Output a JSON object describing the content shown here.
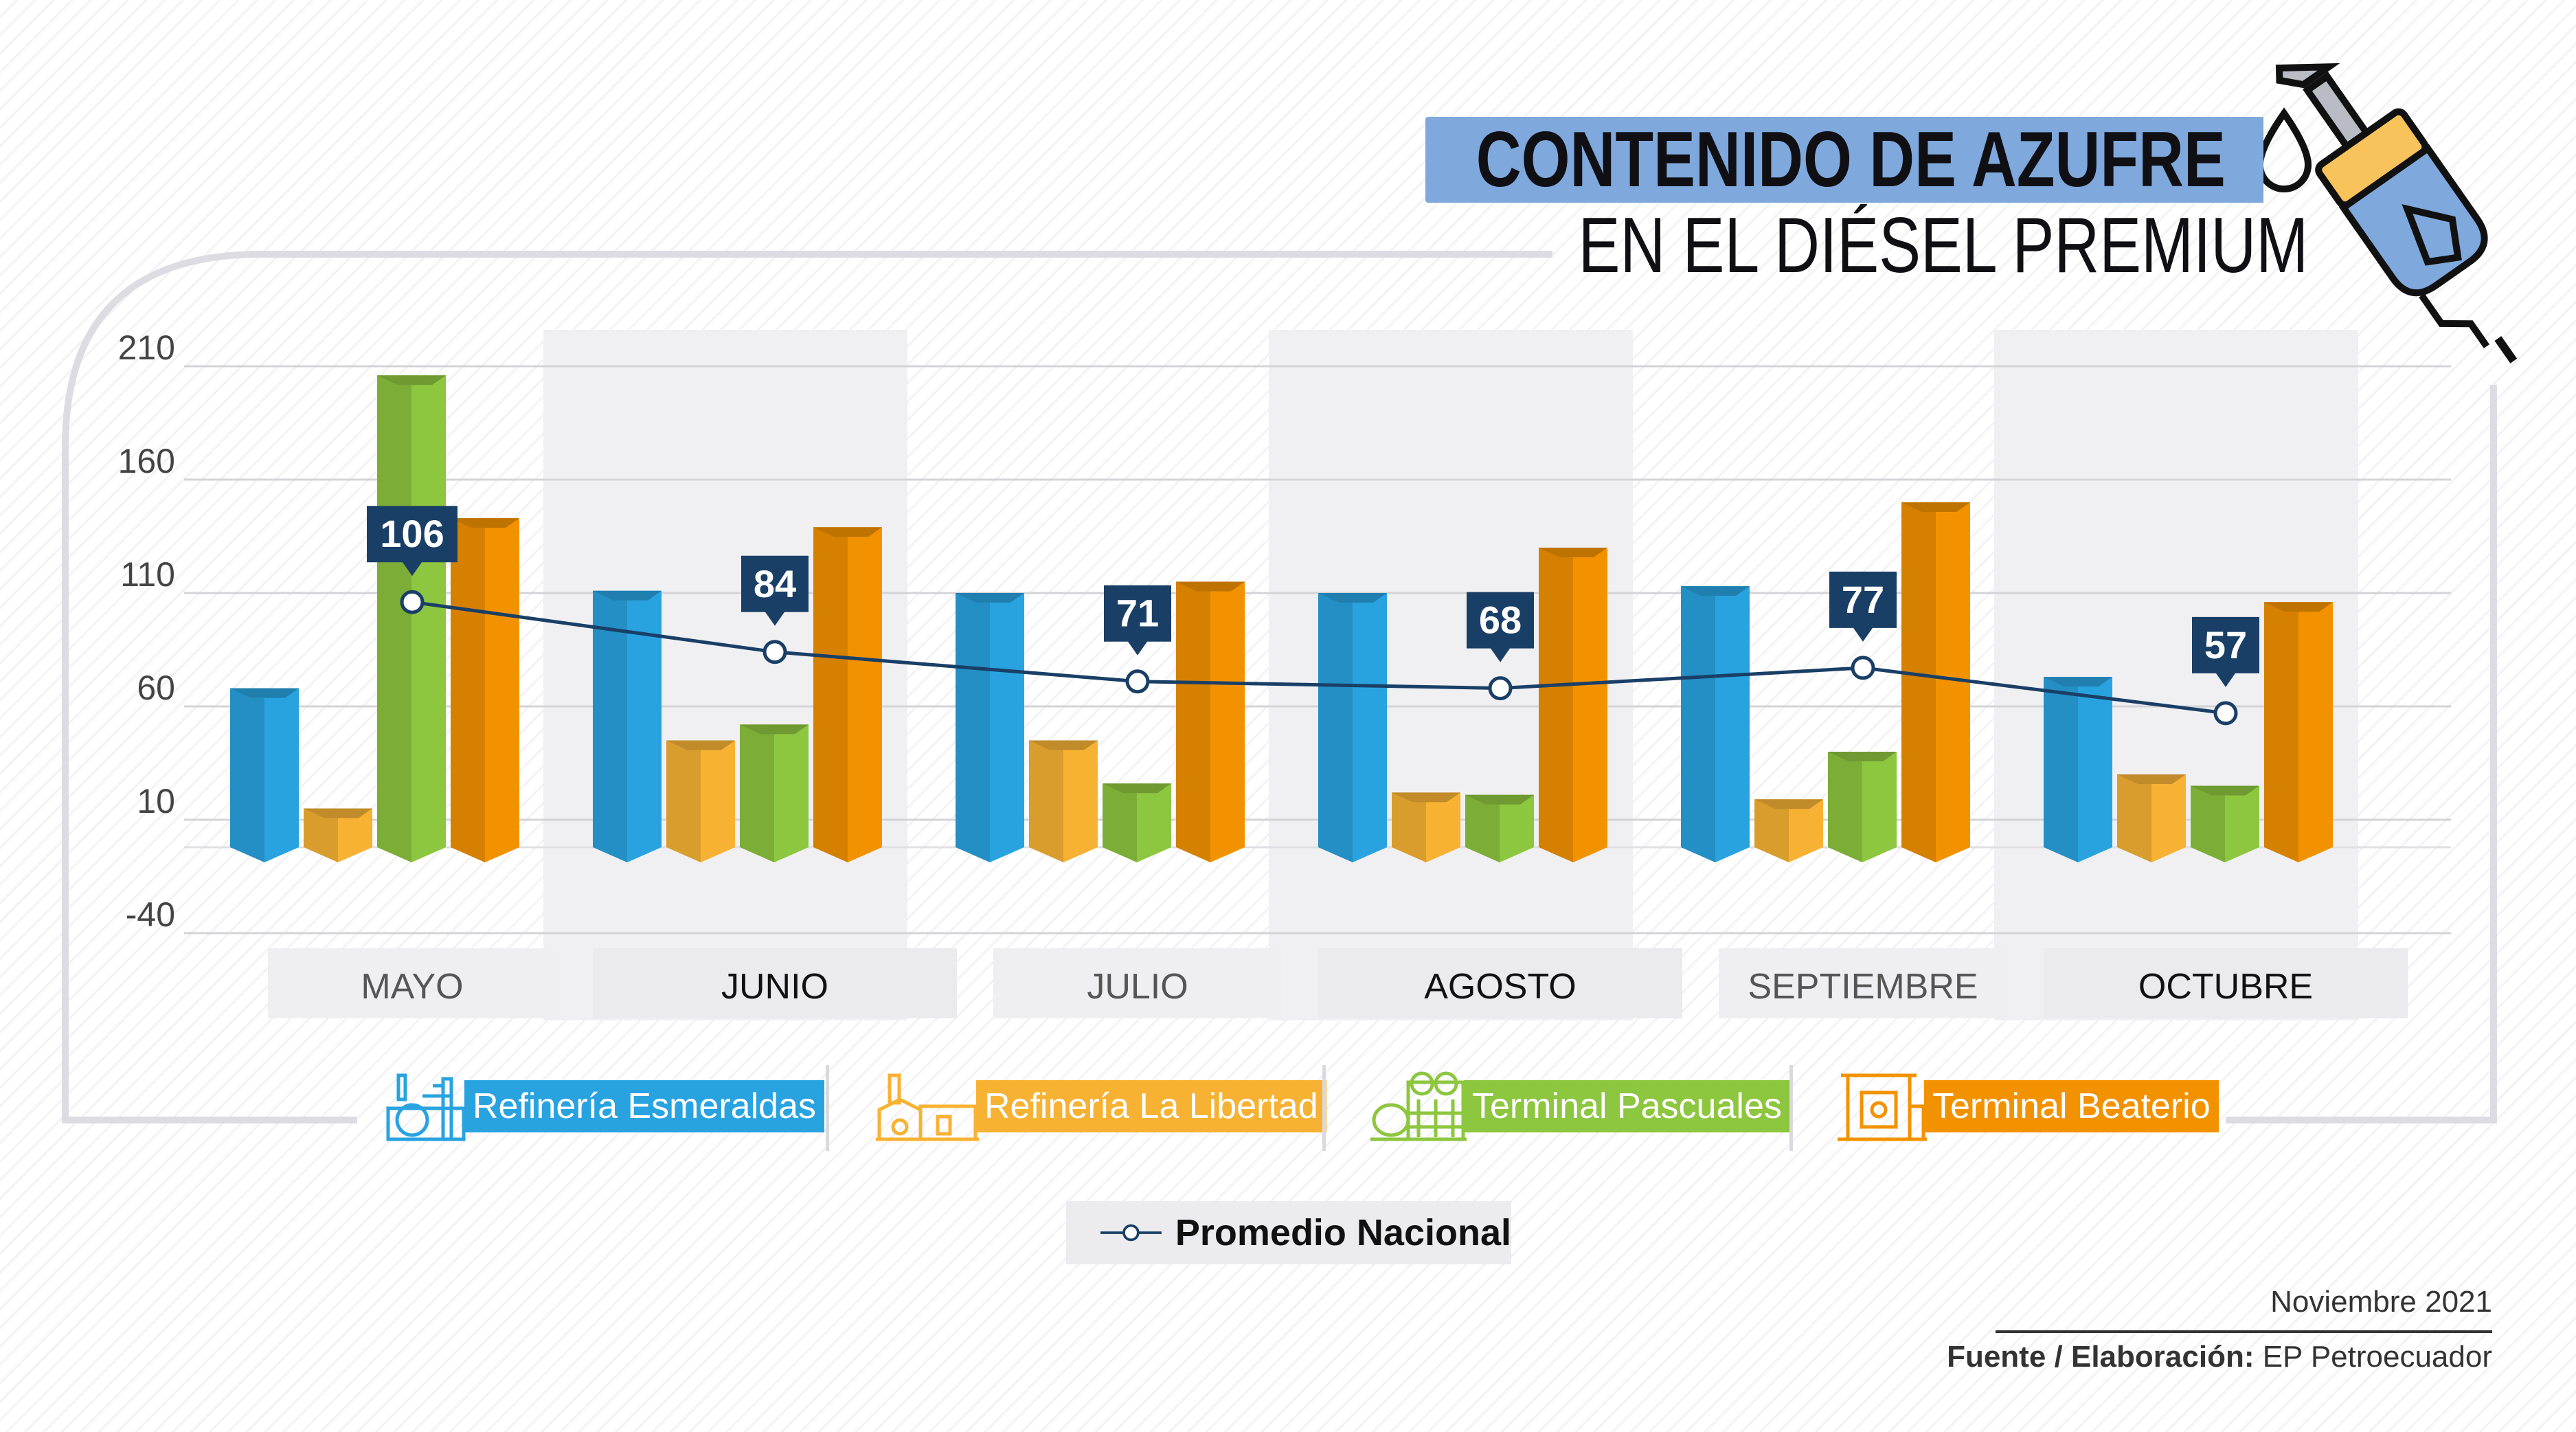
{
  "header": {
    "title_line1": "CONTENIDO DE AZUFRE",
    "title_line2": "EN EL DIÉSEL PREMIUM"
  },
  "chart_data": {
    "type": "bar",
    "yticks": [
      "210",
      "160",
      "110",
      "60",
      "10",
      "-40"
    ],
    "ylim": [
      -40,
      210
    ],
    "categories": [
      "MAYO",
      "JUNIO",
      "JULIO",
      "AGOSTO",
      "SEPTIEMBRE",
      "OCTUBRE"
    ],
    "series": [
      {
        "name": "Refinería Esmeraldas",
        "color": "#29a3e0",
        "values": [
          68,
          111,
          110,
          110,
          113,
          73
        ]
      },
      {
        "name": "Refinería La Libertad",
        "color": "#f7b234",
        "values": [
          15,
          45,
          45,
          22,
          19,
          30
        ]
      },
      {
        "name": "Terminal Pascuales",
        "color": "#8dc63f",
        "values": [
          206,
          52,
          26,
          21,
          40,
          25
        ]
      },
      {
        "name": "Terminal Beaterio",
        "color": "#f39200",
        "values": [
          143,
          139,
          115,
          130,
          150,
          106
        ]
      }
    ],
    "line_series": {
      "name": "Promedio Nacional",
      "color": "#1a3f66",
      "values": [
        106,
        84,
        71,
        68,
        77,
        57
      ],
      "labels": [
        "106",
        "84",
        "71",
        "68",
        "77",
        "57"
      ]
    },
    "grid": true
  },
  "footer": {
    "date": "Noviembre 2021",
    "source_label": "Fuente / Elaboración:",
    "source_value": "EP Petroecuador"
  },
  "icons": [
    "fuel-nozzle-icon",
    "refinery-icon",
    "factory-icon",
    "tanks-icon",
    "terminal-icon"
  ]
}
